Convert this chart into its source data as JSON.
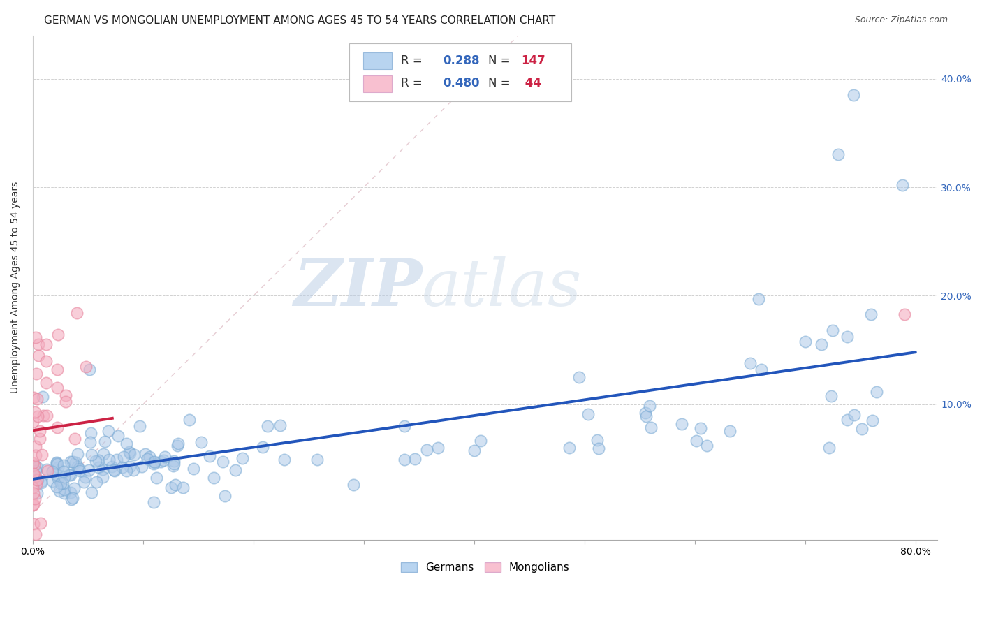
{
  "title": "GERMAN VS MONGOLIAN UNEMPLOYMENT AMONG AGES 45 TO 54 YEARS CORRELATION CHART",
  "source": "Source: ZipAtlas.com",
  "ylabel": "Unemployment Among Ages 45 to 54 years",
  "xlim": [
    0.0,
    0.82
  ],
  "ylim": [
    -0.025,
    0.44
  ],
  "xtick_positions": [
    0.0,
    0.1,
    0.2,
    0.3,
    0.4,
    0.5,
    0.6,
    0.7,
    0.8
  ],
  "xticklabels": [
    "0.0%",
    "",
    "",
    "",
    "",
    "",
    "",
    "",
    "80.0%"
  ],
  "ytick_positions": [
    0.0,
    0.1,
    0.2,
    0.3,
    0.4
  ],
  "yticklabels_right": [
    "",
    "10.0%",
    "20.0%",
    "30.0%",
    "40.0%"
  ],
  "german_R": 0.288,
  "german_N": 147,
  "mongolian_R": 0.48,
  "mongolian_N": 44,
  "german_fill_color": "#adc9e8",
  "german_edge_color": "#7aaad4",
  "mongolian_fill_color": "#f4aec0",
  "mongolian_edge_color": "#e888a0",
  "german_line_color": "#2255bb",
  "mongolian_line_color": "#cc2244",
  "diagonal_color": "#e0c0c8",
  "background_color": "#ffffff",
  "watermark_zip_color": "#c8d8ec",
  "watermark_atlas_color": "#c8d4e8",
  "legend_blue_patch": "#b8d4f0",
  "legend_pink_patch": "#f8c0d0",
  "title_fontsize": 11,
  "source_fontsize": 9,
  "axis_label_fontsize": 10,
  "tick_fontsize": 10,
  "legend_fontsize": 11,
  "legend_stat_fontsize": 12
}
